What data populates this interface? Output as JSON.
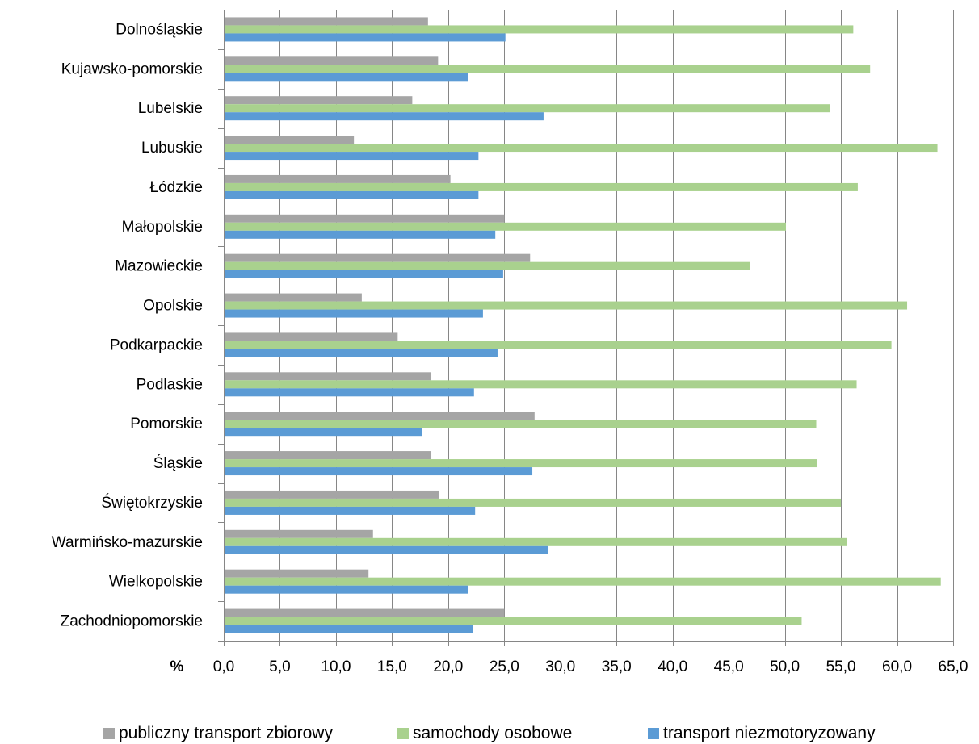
{
  "chart_data": {
    "type": "bar",
    "orientation": "horizontal",
    "categories": [
      "Dolnośląskie",
      "Kujawsko-pomorskie",
      "Lubelskie",
      "Lubuskie",
      "Łódzkie",
      "Małopolskie",
      "Mazowieckie",
      "Opolskie",
      "Podkarpackie",
      "Podlaskie",
      "Pomorskie",
      "Śląskie",
      "Świętokrzyskie",
      "Warmińsko-mazurskie",
      "Wielkopolskie",
      "Zachodniopomorskie"
    ],
    "series": [
      {
        "name": "publiczny transport zbiorowy",
        "color": "#a5a5a5",
        "values": [
          18.2,
          19.1,
          16.8,
          11.6,
          20.2,
          25.0,
          27.3,
          12.3,
          15.5,
          18.5,
          27.7,
          18.5,
          19.2,
          13.3,
          12.9,
          25.0
        ]
      },
      {
        "name": "samochody osobowe",
        "color": "#a9d18e",
        "values": [
          56.1,
          57.6,
          54.0,
          63.6,
          56.5,
          50.1,
          46.9,
          60.9,
          59.5,
          56.4,
          52.8,
          52.9,
          55.0,
          55.5,
          63.9,
          51.5
        ]
      },
      {
        "name": "transport niezmotoryzowany",
        "color": "#5b9bd5",
        "values": [
          25.1,
          21.8,
          28.5,
          22.7,
          22.7,
          24.2,
          24.9,
          23.1,
          24.4,
          22.3,
          17.7,
          27.5,
          22.4,
          28.9,
          21.8,
          22.2
        ]
      }
    ],
    "xlim": [
      0,
      65
    ],
    "xticks": [
      "0,0",
      "5,0",
      "10,0",
      "15,0",
      "20,0",
      "25,0",
      "30,0",
      "35,0",
      "40,0",
      "45,0",
      "50,0",
      "55,0",
      "60,0",
      "65,0"
    ],
    "xlabel": "%",
    "grid": true,
    "legend_position": "bottom"
  }
}
